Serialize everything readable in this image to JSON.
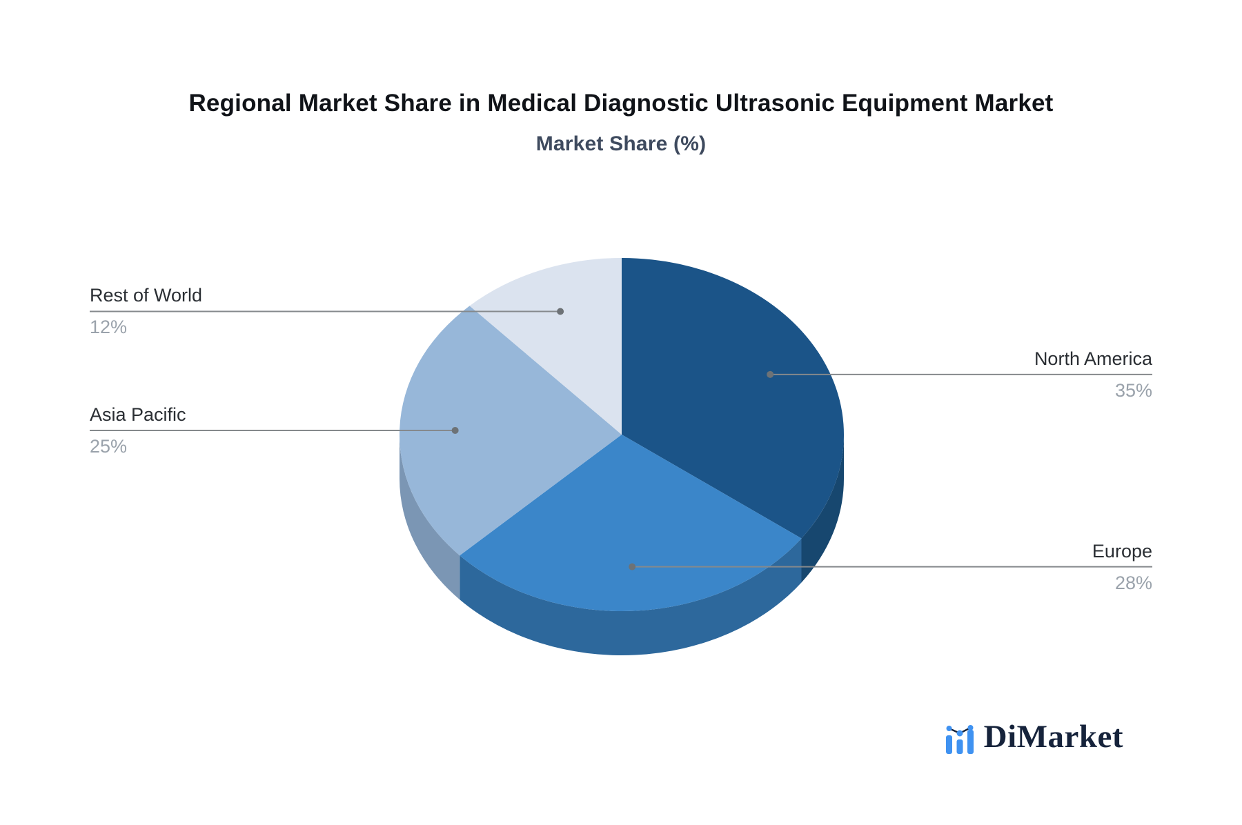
{
  "page": {
    "background": "#ffffff"
  },
  "chart_data": {
    "type": "pie",
    "style": "3d",
    "title": "Regional Market Share in Medical Diagnostic Ultrasonic Equipment Market",
    "subtitle": "Market Share (%)",
    "unit": "%",
    "direction": "clockwise",
    "start_angle_deg": 0,
    "legend": "none",
    "slices": [
      {
        "label": "North America",
        "value": 35,
        "value_label": "35%",
        "color": "#1b5488",
        "side_color": "#17476f"
      },
      {
        "label": "Europe",
        "value": 28,
        "value_label": "28%",
        "color": "#3b86c9",
        "side_color": "#2d689c"
      },
      {
        "label": "Asia Pacific",
        "value": 25,
        "value_label": "25%",
        "color": "#97b7d9",
        "side_color": "#7b96b4"
      },
      {
        "label": "Rest of World",
        "value": 12,
        "value_label": "12%",
        "color": "#dbe3ef",
        "side_color": "#aab8cb"
      }
    ],
    "leader_line_color": "#85898c",
    "dot_color": "#6d7276",
    "label_color": "#2a2e33",
    "value_color": "#9aa2ab"
  },
  "branding": {
    "logo_text": "DiMarket",
    "logo_text_color": "#16233b",
    "logo_accent_color": "#3f92f1"
  }
}
